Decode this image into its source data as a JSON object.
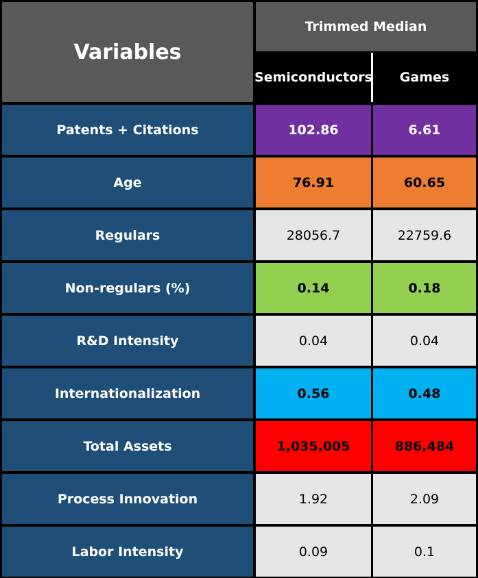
{
  "chart_data": {
    "type": "table",
    "header": {
      "variables_label": "Variables",
      "group_label": "Trimmed Median",
      "columns": [
        "Semiconductors",
        "Games"
      ]
    },
    "rows": [
      {
        "variable": "Patents + Citations",
        "values": [
          "102.86",
          "6.61"
        ],
        "highlight": "#7030a0",
        "text_color": "#ffffff",
        "bold": true
      },
      {
        "variable": "Age",
        "values": [
          "76.91",
          "60.65"
        ],
        "highlight": "#ed7d31",
        "text_color": "#000000",
        "bold": true
      },
      {
        "variable": "Regulars",
        "values": [
          "28056.7",
          "22759.6"
        ],
        "highlight": "#e7e6e6",
        "text_color": "#000000",
        "bold": false
      },
      {
        "variable": "Non-regulars (%)",
        "values": [
          "0.14",
          "0.18"
        ],
        "highlight": "#92d050",
        "text_color": "#000000",
        "bold": true
      },
      {
        "variable": "R&D Intensity",
        "values": [
          "0.04",
          "0.04"
        ],
        "highlight": "#e7e6e6",
        "text_color": "#000000",
        "bold": false
      },
      {
        "variable": "Internationalization",
        "values": [
          "0.56",
          "0.48"
        ],
        "highlight": "#00b0f0",
        "text_color": "#000000",
        "bold": true
      },
      {
        "variable": "Total Assets",
        "values": [
          "1,035,005",
          "886,484"
        ],
        "highlight": "#ff0000",
        "text_color": "#000000",
        "bold": true
      },
      {
        "variable": "Process Innovation",
        "values": [
          "1.92",
          "2.09"
        ],
        "highlight": "#e7e6e6",
        "text_color": "#000000",
        "bold": false
      },
      {
        "variable": "Labor Intensity",
        "values": [
          "0.09",
          "0.1"
        ],
        "highlight": "#e7e6e6",
        "text_color": "#000000",
        "bold": false
      }
    ],
    "colors": {
      "header_bg": "#595959",
      "subheader_bg": "#000000",
      "variable_bg": "#1f4e79",
      "grid": "#000000"
    }
  }
}
